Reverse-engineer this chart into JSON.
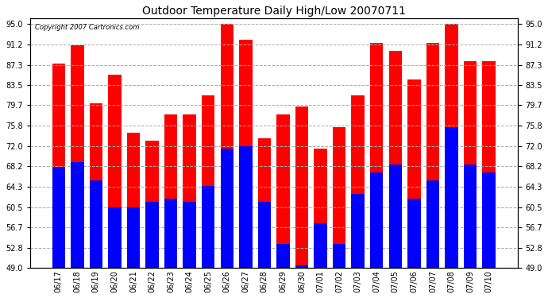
{
  "title": "Outdoor Temperature Daily High/Low 20070711",
  "copyright": "Copyright 2007 Cartronics.com",
  "dates": [
    "06/17",
    "06/18",
    "06/19",
    "06/20",
    "06/21",
    "06/22",
    "06/23",
    "06/24",
    "06/25",
    "06/26",
    "06/27",
    "06/28",
    "06/29",
    "06/30",
    "07/01",
    "07/02",
    "07/03",
    "07/04",
    "07/05",
    "07/06",
    "07/07",
    "07/08",
    "07/09",
    "07/10"
  ],
  "highs": [
    87.5,
    91.0,
    80.0,
    85.5,
    74.5,
    73.0,
    78.0,
    78.0,
    81.5,
    95.0,
    92.0,
    73.5,
    78.0,
    79.5,
    71.5,
    75.5,
    81.5,
    91.5,
    90.0,
    84.5,
    91.5,
    95.0,
    88.0,
    88.0
  ],
  "lows": [
    68.0,
    69.0,
    65.5,
    60.5,
    60.5,
    61.5,
    62.0,
    61.5,
    64.5,
    71.5,
    72.0,
    61.5,
    53.5,
    49.5,
    57.5,
    53.5,
    63.0,
    67.0,
    68.5,
    62.0,
    65.5,
    75.5,
    68.5,
    67.0
  ],
  "high_color": "#ff0000",
  "low_color": "#0000ff",
  "bg_color": "#ffffff",
  "ylim_min": 49.0,
  "ylim_max": 96.0,
  "yticks": [
    49.0,
    52.8,
    56.7,
    60.5,
    64.3,
    68.2,
    72.0,
    75.8,
    79.7,
    83.5,
    87.3,
    91.2,
    95.0
  ],
  "grid_color": "#aaaaaa",
  "bar_width": 0.7,
  "title_fontsize": 10,
  "copyright_fontsize": 6,
  "tick_fontsize": 7
}
